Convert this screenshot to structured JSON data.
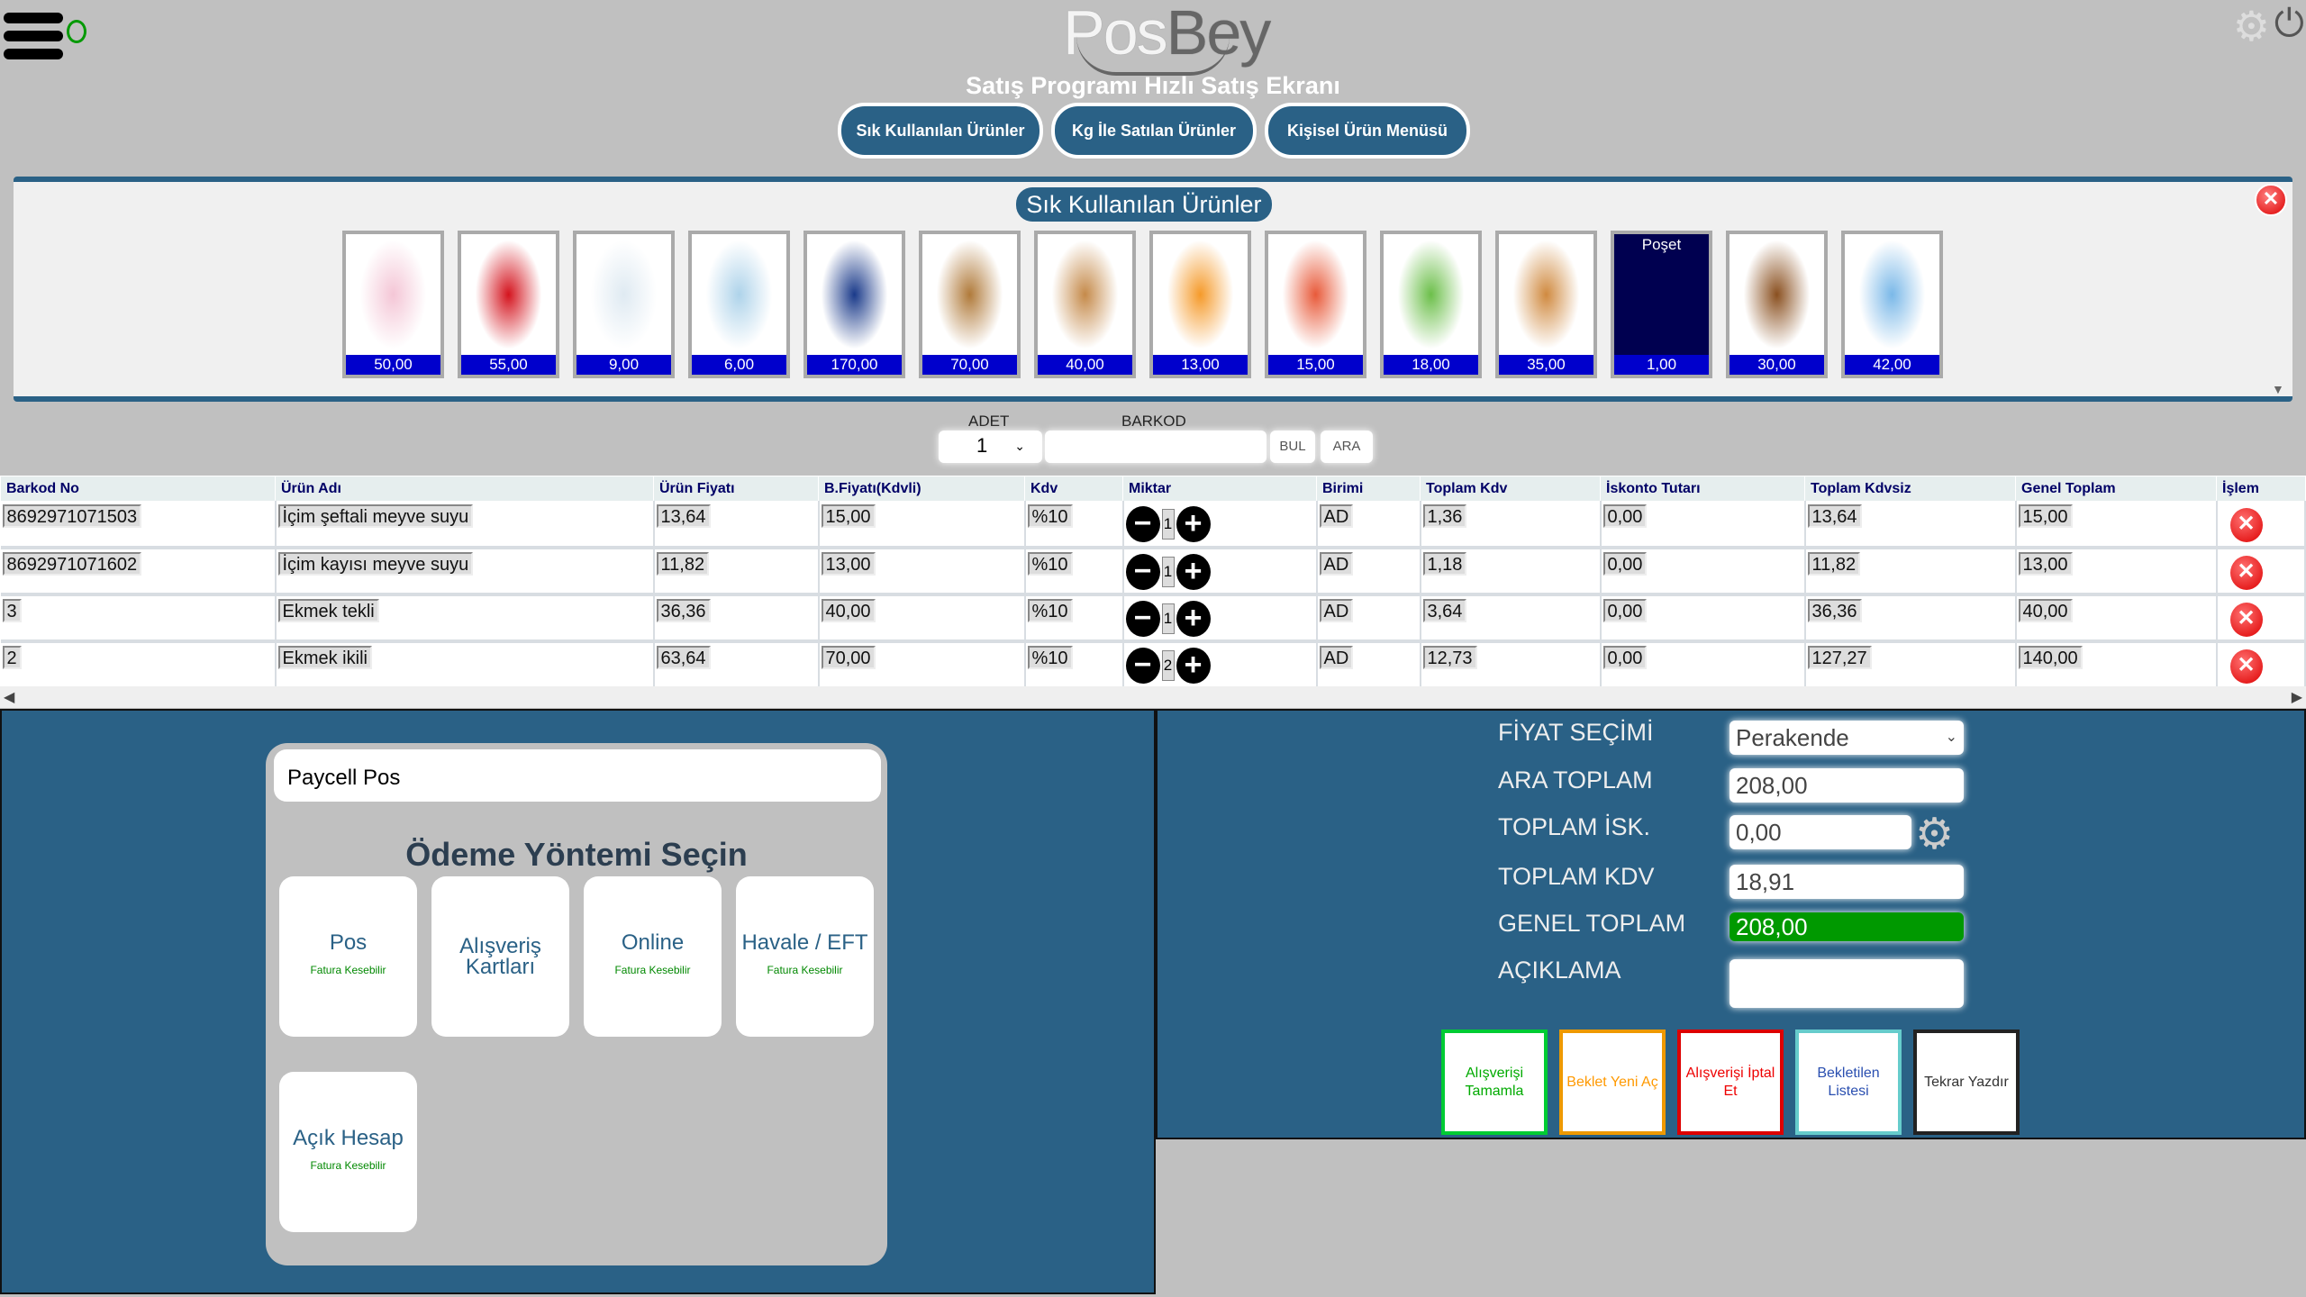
{
  "header": {
    "logo_left": "Pos",
    "logo_right": "Bey",
    "subtitle": "Satış Programı Hızlı Satış Ekranı",
    "nav": [
      "Sık Kullanılan Ürünler",
      "Kg İle Satılan Ürünler",
      "Kişisel Ürün Menüsü"
    ]
  },
  "products": {
    "title": "Sık Kullanılan Ürünler",
    "items": [
      {
        "price": "50,00",
        "color": "#f4c6d6"
      },
      {
        "price": "55,00",
        "color": "#d4141e"
      },
      {
        "price": "9,00",
        "color": "#dfeaf2"
      },
      {
        "price": "6,00",
        "color": "#aed3ea"
      },
      {
        "price": "170,00",
        "color": "#1a3a8a"
      },
      {
        "price": "70,00",
        "color": "#b07a3a"
      },
      {
        "price": "40,00",
        "color": "#c58a4a"
      },
      {
        "price": "13,00",
        "color": "#f59a2a"
      },
      {
        "price": "15,00",
        "color": "#e85a3a"
      },
      {
        "price": "18,00",
        "color": "#6cbf4a"
      },
      {
        "price": "35,00",
        "color": "#d08a40"
      },
      {
        "label": "Poşet",
        "price": "1,00",
        "color": "#000050"
      },
      {
        "price": "30,00",
        "color": "#8a5020"
      },
      {
        "price": "42,00",
        "color": "#7ab8e8"
      }
    ]
  },
  "entry": {
    "adet_label": "ADET",
    "adet_value": "1",
    "barkod_label": "BARKOD",
    "barkod_value": "",
    "bul": "BUL",
    "ara": "ARA"
  },
  "table": {
    "headers": [
      "Barkod No",
      "Ürün Adı",
      "Ürün Fiyatı",
      "B.Fiyatı(Kdvli)",
      "Kdv",
      "Miktar",
      "Birimi",
      "Toplam Kdv",
      "İskonto Tutarı",
      "Toplam Kdvsiz",
      "Genel Toplam",
      "İşlem"
    ],
    "rows": [
      [
        "8692971071503",
        "İçim şeftali meyve suyu",
        "13,64",
        "15,00",
        "%10",
        "1",
        "AD",
        "1,36",
        "0,00",
        "13,64",
        "15,00"
      ],
      [
        "8692971071602",
        "İçim kayısı meyve suyu",
        "11,82",
        "13,00",
        "%10",
        "1",
        "AD",
        "1,18",
        "0,00",
        "11,82",
        "13,00"
      ],
      [
        "3",
        "Ekmek tekli",
        "36,36",
        "40,00",
        "%10",
        "1",
        "AD",
        "3,64",
        "0,00",
        "36,36",
        "40,00"
      ],
      [
        "2",
        "Ekmek ikili",
        "63,64",
        "70,00",
        "%10",
        "2",
        "AD",
        "12,73",
        "0,00",
        "127,27",
        "140,00"
      ]
    ]
  },
  "payment": {
    "provider": "Paycell Pos",
    "title": "Ödeme Yöntemi Seçin",
    "methods": [
      {
        "label": "Pos",
        "note": "Fatura Kesebilir"
      },
      {
        "label": "Alışveriş Kartları",
        "note": ""
      },
      {
        "label": "Online",
        "note": "Fatura Kesebilir"
      },
      {
        "label": "Havale / EFT",
        "note": "Fatura Kesebilir"
      },
      {
        "label": "Açık Hesap",
        "note": "Fatura Kesebilir"
      }
    ]
  },
  "summary": {
    "fiyat_label": "FİYAT SEÇİMİ",
    "fiyat_value": "Perakende",
    "ara_label": "ARA TOPLAM",
    "ara_value": "208,00",
    "isk_label": "TOPLAM İSK.",
    "isk_value": "0,00",
    "kdv_label": "TOPLAM KDV",
    "kdv_value": "18,91",
    "genel_label": "GENEL TOPLAM",
    "genel_value": "208,00",
    "aciklama_label": "AÇIKLAMA",
    "aciklama_value": ""
  },
  "actions": [
    {
      "label": "Alışverişi Tamamla",
      "color": "#0a0",
      "border": "#0c3"
    },
    {
      "label": "Beklet Yeni Aç",
      "color": "#f90",
      "border": "#e90"
    },
    {
      "label": "Alışverişi İptal Et",
      "color": "#e00",
      "border": "#d00"
    },
    {
      "label": "Bekletilen Listesi",
      "color": "#2a4fb0",
      "border": "#6cc"
    },
    {
      "label": "Tekrar Yazdır",
      "color": "#333",
      "border": "#222"
    }
  ]
}
